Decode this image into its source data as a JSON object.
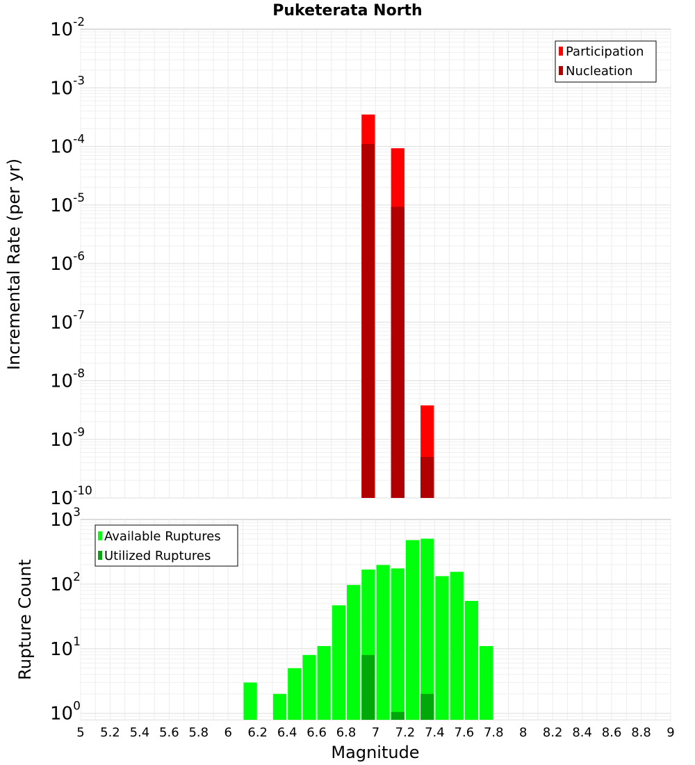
{
  "title": "Puketerata North",
  "chart_data": [
    {
      "type": "bar",
      "name": "rate-chart",
      "ylabel": "Incremental Rate (per yr)",
      "xlabel": "",
      "yscale": "log",
      "ylim_exp": [
        -10,
        -2
      ],
      "xlim": [
        5,
        9
      ],
      "bar_width": 0.1,
      "grid": true,
      "legend_position": "top-right",
      "y_tick_exponents": [
        "-2",
        "-3",
        "-4",
        "-5",
        "-6",
        "-7",
        "-8",
        "-9",
        "-10"
      ],
      "series": [
        {
          "name": "Participation",
          "color": "#ff0000",
          "x": [
            6.95,
            7.15,
            7.35
          ],
          "values": [
            0.00035,
            9.3e-05,
            3.8e-09
          ]
        },
        {
          "name": "Nucleation",
          "color": "#b00000",
          "x": [
            6.95,
            7.15,
            7.35
          ],
          "values": [
            0.00011,
            9.3e-06,
            5e-10
          ]
        }
      ]
    },
    {
      "type": "bar",
      "name": "count-chart",
      "ylabel": "Rupture Count",
      "xlabel": "Magnitude",
      "yscale": "log",
      "ylim_exp": [
        -0.1,
        3
      ],
      "xlim": [
        5,
        9
      ],
      "bar_width": 0.1,
      "grid": true,
      "legend_position": "top-left",
      "y_tick_exponents": [
        "3",
        "2",
        "1",
        "0"
      ],
      "x_ticks": [
        "5",
        "5.2",
        "5.4",
        "5.6",
        "5.8",
        "6",
        "6.2",
        "6.4",
        "6.6",
        "6.8",
        "7",
        "7.2",
        "7.4",
        "7.6",
        "7.8",
        "8",
        "8.2",
        "8.4",
        "8.6",
        "8.8",
        "9"
      ],
      "series": [
        {
          "name": "Available Ruptures",
          "color": "#00ff0c",
          "x": [
            6.15,
            6.35,
            6.45,
            6.55,
            6.65,
            6.75,
            6.85,
            6.95,
            7.05,
            7.15,
            7.25,
            7.35,
            7.45,
            7.55,
            7.65,
            7.75
          ],
          "values": [
            3,
            2,
            5,
            8,
            11,
            47,
            97,
            168,
            198,
            175,
            480,
            505,
            133,
            155,
            55,
            11
          ]
        },
        {
          "name": "Utilized Ruptures",
          "color": "#00a80a",
          "x": [
            6.95,
            7.15,
            7.35
          ],
          "values": [
            8,
            1.05,
            2
          ]
        }
      ]
    }
  ]
}
